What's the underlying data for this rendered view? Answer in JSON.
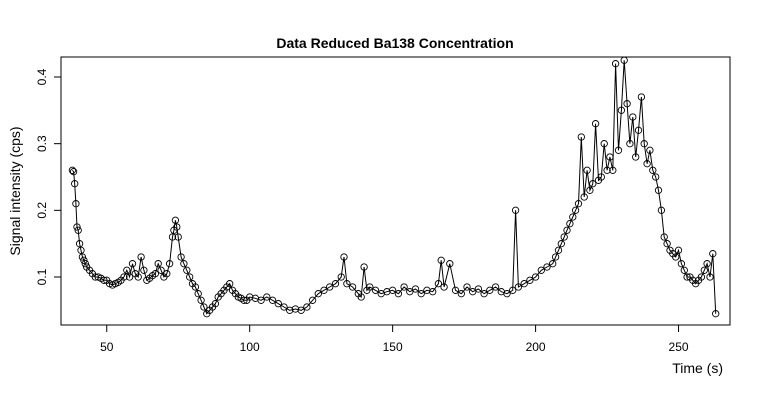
{
  "chart_data": {
    "type": "scatter",
    "title": "Data Reduced Ba138 Concentration",
    "xlabel": "Time (s)",
    "ylabel": "Signal intensity (cps)",
    "xlim": [
      34,
      268
    ],
    "ylim": [
      0.028,
      0.43
    ],
    "x_ticks": [
      50,
      100,
      150,
      200,
      250
    ],
    "x_tick_labels": [
      "50",
      "100",
      "150",
      "200",
      "250"
    ],
    "y_ticks": [
      0.1,
      0.2,
      0.3,
      0.4
    ],
    "y_tick_labels": [
      "0.1",
      "0.2",
      "0.3",
      "0.4"
    ],
    "grid": false,
    "legend": "none",
    "series": [
      {
        "style": "points-and-lines",
        "x": [
          38,
          38.4,
          38.8,
          39.2,
          39.6,
          40,
          40.5,
          41,
          41.5,
          42,
          42.5,
          43,
          44,
          45,
          46,
          47,
          48,
          49,
          50,
          51,
          52,
          53,
          54,
          55,
          56,
          57,
          58,
          59,
          60,
          61,
          62,
          63,
          64,
          65,
          66,
          67,
          68,
          69,
          70,
          71,
          72,
          73,
          73.5,
          74,
          74.5,
          75,
          76,
          77,
          78,
          79,
          80,
          81,
          82,
          83,
          84,
          85,
          86,
          87,
          88,
          89,
          90,
          91,
          92,
          93,
          94,
          95,
          96,
          97,
          98,
          99,
          100,
          102,
          104,
          106,
          108,
          110,
          112,
          114,
          116,
          118,
          120,
          122,
          124,
          126,
          128,
          130,
          132,
          133,
          134,
          136,
          138,
          139,
          140,
          141,
          142,
          144,
          146,
          148,
          150,
          152,
          154,
          156,
          158,
          160,
          162,
          164,
          166,
          167,
          168,
          170,
          172,
          174,
          176,
          178,
          180,
          182,
          184,
          186,
          188,
          190,
          192,
          193,
          194,
          196,
          198,
          200,
          202,
          204,
          206,
          207,
          208,
          209,
          210,
          211,
          212,
          213,
          214,
          215,
          216,
          217,
          218,
          219,
          220,
          221,
          222,
          223,
          224,
          225,
          226,
          227,
          228,
          229,
          230,
          231,
          232,
          233,
          234,
          235,
          236,
          237,
          238,
          239,
          240,
          241,
          242,
          243,
          244,
          245,
          246,
          247,
          248,
          249,
          250,
          251,
          252,
          253,
          254,
          255,
          256,
          257,
          258,
          259,
          260,
          261,
          262,
          263
        ],
        "y": [
          0.26,
          0.258,
          0.24,
          0.21,
          0.175,
          0.17,
          0.15,
          0.14,
          0.13,
          0.125,
          0.12,
          0.115,
          0.11,
          0.105,
          0.1,
          0.1,
          0.098,
          0.095,
          0.095,
          0.09,
          0.088,
          0.09,
          0.092,
          0.095,
          0.1,
          0.11,
          0.1,
          0.12,
          0.105,
          0.1,
          0.13,
          0.11,
          0.095,
          0.098,
          0.102,
          0.105,
          0.12,
          0.11,
          0.1,
          0.105,
          0.12,
          0.16,
          0.17,
          0.185,
          0.175,
          0.16,
          0.13,
          0.12,
          0.11,
          0.1,
          0.09,
          0.085,
          0.075,
          0.065,
          0.055,
          0.045,
          0.05,
          0.055,
          0.06,
          0.07,
          0.075,
          0.08,
          0.085,
          0.09,
          0.08,
          0.075,
          0.07,
          0.068,
          0.065,
          0.065,
          0.07,
          0.068,
          0.065,
          0.07,
          0.065,
          0.06,
          0.055,
          0.05,
          0.052,
          0.05,
          0.055,
          0.065,
          0.075,
          0.08,
          0.085,
          0.09,
          0.1,
          0.13,
          0.09,
          0.085,
          0.075,
          0.07,
          0.115,
          0.08,
          0.085,
          0.08,
          0.075,
          0.078,
          0.08,
          0.075,
          0.085,
          0.078,
          0.082,
          0.075,
          0.08,
          0.078,
          0.09,
          0.125,
          0.085,
          0.12,
          0.08,
          0.075,
          0.085,
          0.078,
          0.082,
          0.075,
          0.08,
          0.085,
          0.078,
          0.075,
          0.08,
          0.2,
          0.085,
          0.09,
          0.095,
          0.1,
          0.11,
          0.115,
          0.12,
          0.13,
          0.14,
          0.15,
          0.16,
          0.17,
          0.18,
          0.19,
          0.2,
          0.21,
          0.31,
          0.22,
          0.26,
          0.23,
          0.24,
          0.33,
          0.245,
          0.25,
          0.3,
          0.26,
          0.28,
          0.26,
          0.42,
          0.29,
          0.35,
          0.425,
          0.36,
          0.3,
          0.34,
          0.28,
          0.32,
          0.37,
          0.3,
          0.27,
          0.29,
          0.26,
          0.25,
          0.23,
          0.2,
          0.16,
          0.15,
          0.14,
          0.135,
          0.13,
          0.14,
          0.12,
          0.11,
          0.1,
          0.1,
          0.095,
          0.09,
          0.095,
          0.1,
          0.11,
          0.12,
          0.1,
          0.135,
          0.045
        ]
      }
    ]
  }
}
